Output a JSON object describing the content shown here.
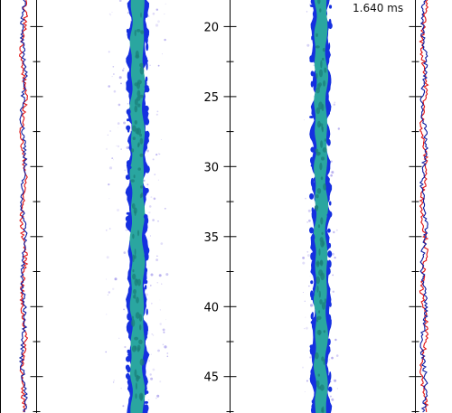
{
  "time_label": "1.640 ms",
  "colors": {
    "profile_a": "#e01010",
    "profile_b": "#0a1aa0",
    "jet_core": "#2aa6a0",
    "jet_core_dark": "#1b7f7a",
    "jet_edge": "#1530e0",
    "spray_droplets": "#7060e0",
    "axis": "#000000",
    "background": "#ffffff"
  },
  "chart_data": {
    "type": "line",
    "title": "",
    "xlabel": "",
    "ylabel": "",
    "ylim": [
      18.1,
      47.6
    ],
    "y_ticks": [
      20,
      25,
      30,
      35,
      40,
      45
    ],
    "y_tick_labels": [
      "20",
      "25",
      "30",
      "35",
      "40",
      "45"
    ],
    "y_direction": "down",
    "minor_tick_step": 2.5,
    "grid": false,
    "legend": "none",
    "panels": [
      {
        "name": "left-edge-profiles",
        "kind": "line",
        "series_count": 2
      },
      {
        "name": "jet-image-left",
        "kind": "image"
      },
      {
        "name": "jet-image-right",
        "kind": "image"
      },
      {
        "name": "right-edge-profiles",
        "kind": "line",
        "series_count": 2
      }
    ]
  }
}
